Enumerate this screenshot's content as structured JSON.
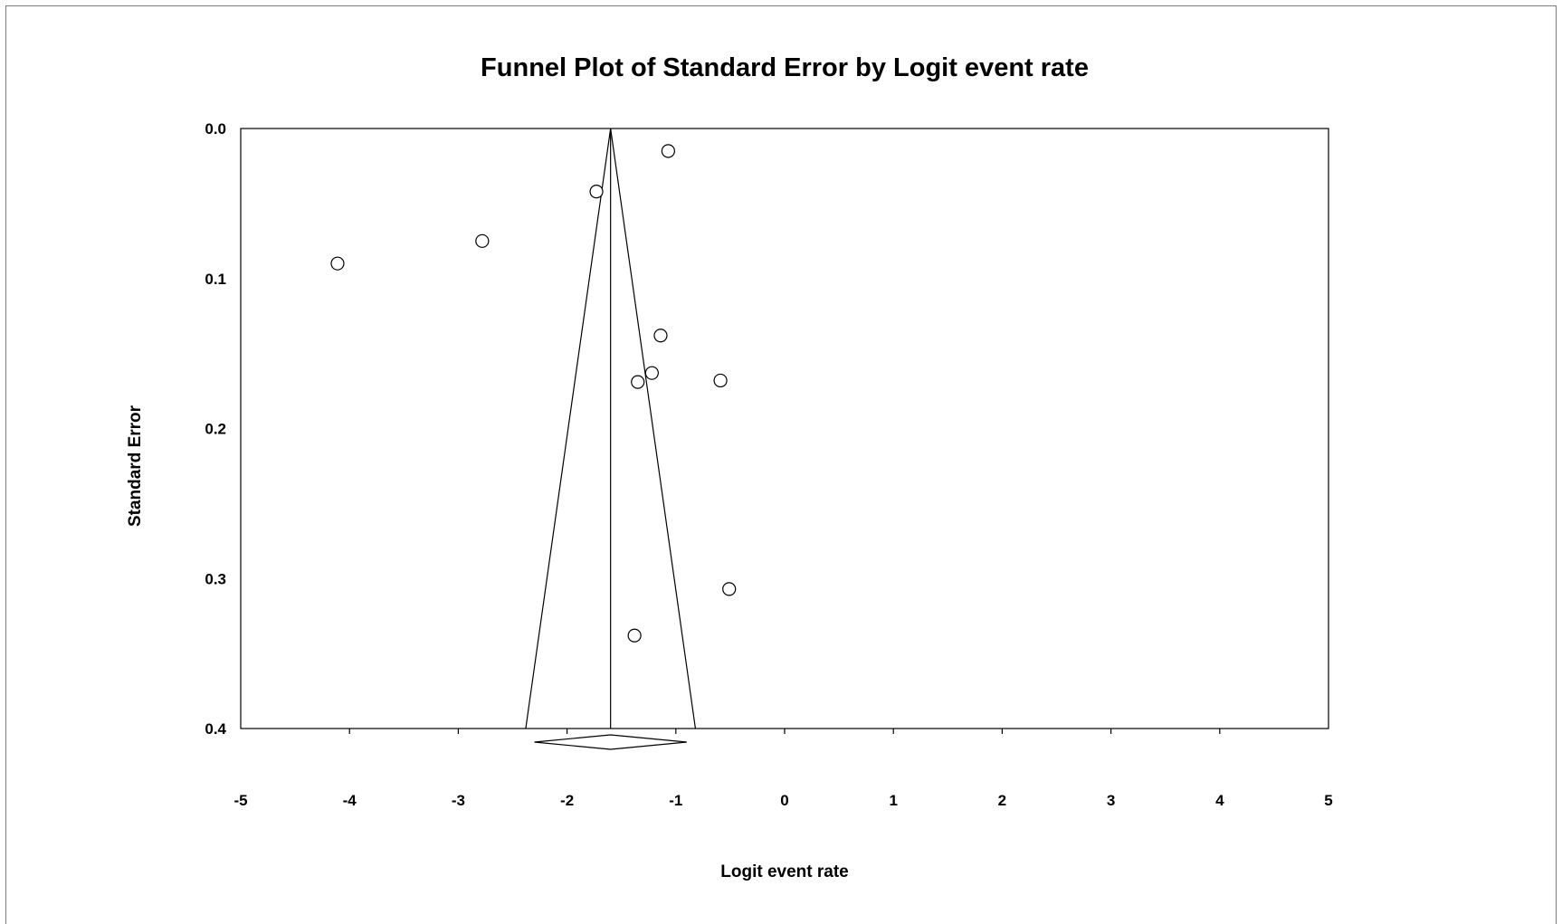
{
  "chart_data": {
    "type": "scatter",
    "title": "Funnel Plot of Standard Error by Logit event rate",
    "xlabel": "Logit event rate",
    "ylabel": "Standard Error",
    "xlim": [
      -5,
      5
    ],
    "ylim": [
      0.4,
      0.0
    ],
    "y_axis_inverted": true,
    "x_ticks": [
      "-5",
      "-4",
      "-3",
      "-2",
      "-1",
      "0",
      "1",
      "2",
      "3",
      "4",
      "5"
    ],
    "y_ticks": [
      "0.0",
      "0.1",
      "0.2",
      "0.3",
      "0.4"
    ],
    "grid": false,
    "legend": "none",
    "marker": "open-circle",
    "points": [
      {
        "x": -1.07,
        "y": 0.015
      },
      {
        "x": -1.73,
        "y": 0.042
      },
      {
        "x": -2.78,
        "y": 0.075
      },
      {
        "x": -4.11,
        "y": 0.09
      },
      {
        "x": -1.14,
        "y": 0.138
      },
      {
        "x": -1.22,
        "y": 0.163
      },
      {
        "x": -1.35,
        "y": 0.169
      },
      {
        "x": -0.59,
        "y": 0.168
      },
      {
        "x": -0.51,
        "y": 0.307
      },
      {
        "x": -1.38,
        "y": 0.338
      }
    ],
    "summary": {
      "estimate": -1.6,
      "ci_lower": -2.3,
      "ci_upper": -0.9
    },
    "funnel": {
      "apex": {
        "x": -1.6,
        "y": 0.0
      },
      "base_left": {
        "x": -2.38,
        "y": 0.4
      },
      "base_right": {
        "x": -0.82,
        "y": 0.4
      }
    }
  }
}
